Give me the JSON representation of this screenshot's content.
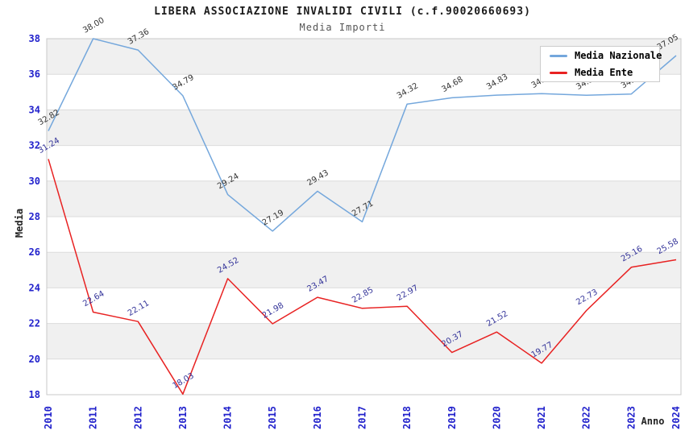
{
  "chart_data": {
    "type": "line",
    "title": "LIBERA ASSOCIAZIONE INVALIDI CIVILI (c.f.90020660693)",
    "subtitle": "Media Importi",
    "xlabel": "Anno",
    "ylabel": "Media",
    "categories": [
      "2010",
      "2011",
      "2012",
      "2013",
      "2014",
      "2015",
      "2016",
      "2017",
      "2018",
      "2019",
      "2020",
      "2021",
      "2022",
      "2023",
      "2024"
    ],
    "series": [
      {
        "name": "Media Nazionale",
        "color": "#74a7dc",
        "label_color": "#333333",
        "values": [
          32.82,
          38.0,
          37.36,
          34.79,
          29.24,
          27.19,
          29.43,
          27.71,
          34.32,
          34.68,
          34.83,
          34.91,
          34.82,
          34.89,
          37.05
        ]
      },
      {
        "name": "Media Ente",
        "color": "#e82222",
        "label_color": "#333399",
        "values": [
          31.24,
          22.64,
          22.11,
          18.03,
          24.52,
          21.98,
          23.47,
          22.85,
          22.97,
          20.37,
          21.52,
          19.77,
          22.73,
          25.16,
          25.58
        ]
      }
    ],
    "ylim": [
      18,
      38
    ],
    "y_ticks": [
      18,
      20,
      22,
      24,
      26,
      28,
      30,
      32,
      34,
      36,
      38
    ],
    "grid": "horizontal-bands",
    "legend_position": "top-right",
    "colors": {
      "band": "#f0f0f0",
      "gridline": "#dcdcdc",
      "plot_border": "#c8c8c8",
      "tick_label": "#2222cc",
      "axis_title": "#222222"
    }
  }
}
